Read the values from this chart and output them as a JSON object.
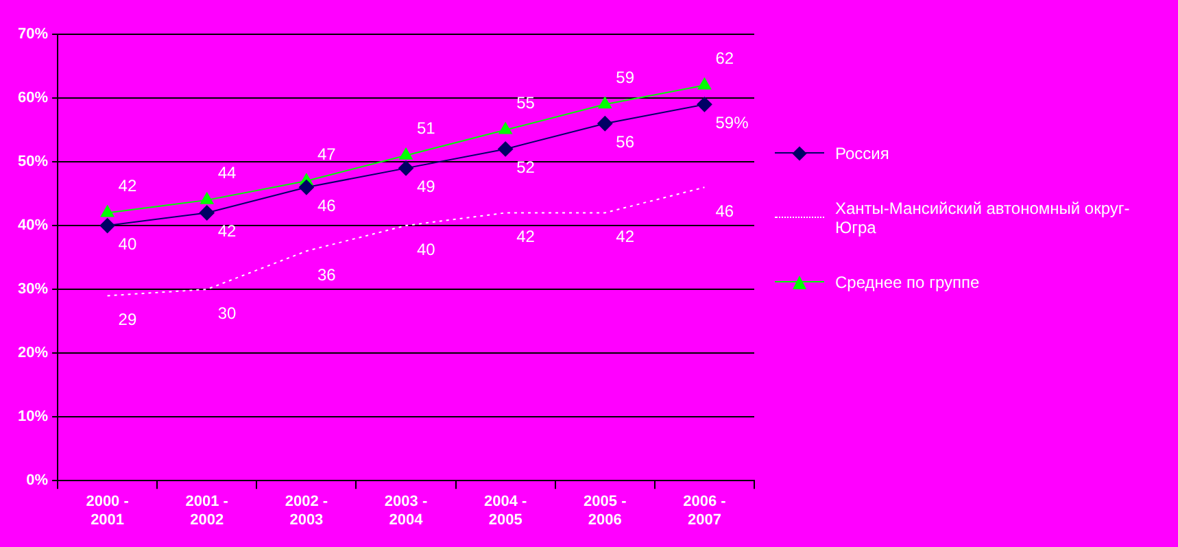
{
  "chart_data": {
    "type": "line",
    "categories": [
      "2000 - 2001",
      "2001 - 2002",
      "2002 - 2003",
      "2003 - 2004",
      "2004 - 2005",
      "2005 - 2006",
      "2006 - 2007"
    ],
    "series": [
      {
        "name": "Россия",
        "color": "#000066",
        "marker": "diamond",
        "line_style": "solid",
        "values": [
          40,
          42,
          46,
          49,
          52,
          56,
          59
        ],
        "value_labels": [
          "40",
          "42",
          "46",
          "49",
          "52",
          "56",
          "59%"
        ]
      },
      {
        "name": "Ханты-Мансийский автономный округ-Югра",
        "color": "#ffffff",
        "marker": "none",
        "line_style": "dotted",
        "values": [
          29,
          30,
          36,
          40,
          42,
          42,
          46
        ],
        "value_labels": [
          "29",
          "30",
          "36",
          "40",
          "42",
          "42",
          "46"
        ]
      },
      {
        "name": "Среднее по группе",
        "color": "#00ff00",
        "marker": "triangle",
        "line_style": "solid",
        "values": [
          42,
          44,
          47,
          51,
          55,
          59,
          62
        ],
        "value_labels": [
          "42",
          "44",
          "47",
          "51",
          "55",
          "59",
          "62"
        ]
      }
    ],
    "ylim": [
      0,
      70
    ],
    "yticks": [
      {
        "value": 0,
        "label": "0%"
      },
      {
        "value": 10,
        "label": "10%"
      },
      {
        "value": 20,
        "label": "20%"
      },
      {
        "value": 30,
        "label": "30%"
      },
      {
        "value": 40,
        "label": "40%"
      },
      {
        "value": 50,
        "label": "50%"
      },
      {
        "value": 60,
        "label": "60%"
      },
      {
        "value": 70,
        "label": "70%"
      }
    ],
    "grid": "y",
    "legend": "right"
  }
}
